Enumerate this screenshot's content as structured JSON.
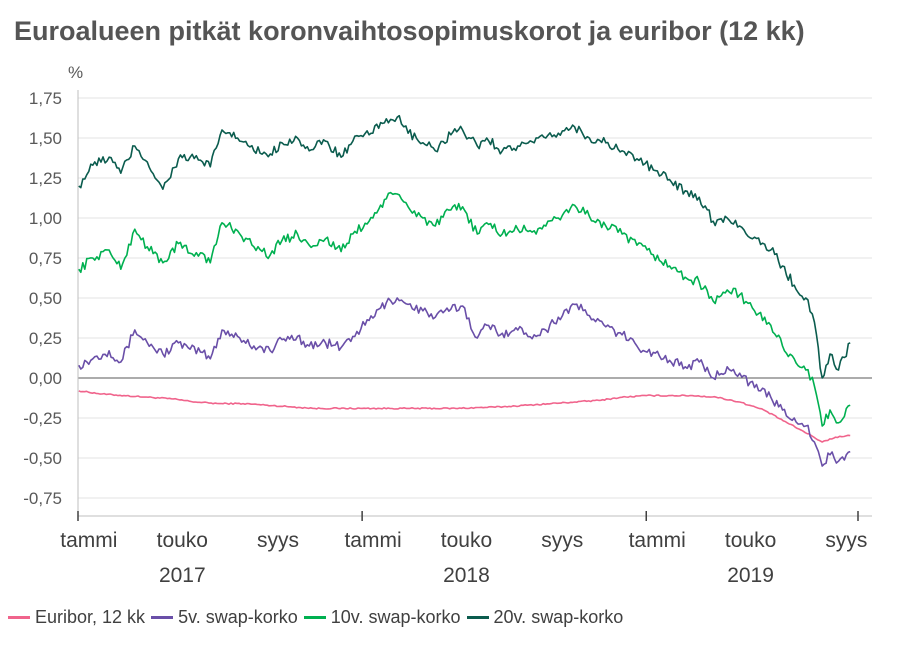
{
  "chart_data": {
    "type": "line",
    "title": "Euroalueen pitkät koronvaihtosopimuskorot ja euribor (12 kk)",
    "ylabel": "%",
    "ylim": [
      -0.75,
      1.75
    ],
    "yticks": [
      "1,75",
      "1,50",
      "1,25",
      "1,00",
      "0,75",
      "0,50",
      "0,25",
      "0,00",
      "-0,25",
      "-0,50",
      "-0,75"
    ],
    "ytick_values": [
      1.75,
      1.5,
      1.25,
      1.0,
      0.75,
      0.5,
      0.25,
      0.0,
      -0.25,
      -0.5,
      -0.75
    ],
    "xlim": [
      "2017-01-01",
      "2019-09-30"
    ],
    "month_labels": [
      {
        "date": "2017-01-15",
        "text": "tammi"
      },
      {
        "date": "2017-05-15",
        "text": "touko"
      },
      {
        "date": "2017-09-15",
        "text": "syys"
      },
      {
        "date": "2018-01-15",
        "text": "tammi"
      },
      {
        "date": "2018-05-15",
        "text": "touko"
      },
      {
        "date": "2018-09-15",
        "text": "syys"
      },
      {
        "date": "2019-01-15",
        "text": "tammi"
      },
      {
        "date": "2019-05-15",
        "text": "touko"
      },
      {
        "date": "2019-09-15",
        "text": "syys"
      }
    ],
    "year_labels": [
      {
        "date": "2017-05-15",
        "text": "2017"
      },
      {
        "date": "2018-05-15",
        "text": "2018"
      },
      {
        "date": "2019-05-15",
        "text": "2019"
      }
    ],
    "year_ticks": [
      "2017-01-01",
      "2018-01-01",
      "2019-01-01",
      "2019-09-30"
    ],
    "grid": "horizontal",
    "legend_position": "bottom",
    "series": [
      {
        "name": "Euribor, 12 kk",
        "color": "#f0648c",
        "points": [
          [
            "2017-01-02",
            -0.08
          ],
          [
            "2017-02-01",
            -0.1
          ],
          [
            "2017-03-01",
            -0.11
          ],
          [
            "2017-04-01",
            -0.12
          ],
          [
            "2017-05-01",
            -0.13
          ],
          [
            "2017-06-01",
            -0.15
          ],
          [
            "2017-07-01",
            -0.16
          ],
          [
            "2017-08-01",
            -0.16
          ],
          [
            "2017-09-01",
            -0.17
          ],
          [
            "2017-10-01",
            -0.18
          ],
          [
            "2017-11-01",
            -0.19
          ],
          [
            "2017-12-01",
            -0.19
          ],
          [
            "2018-01-01",
            -0.19
          ],
          [
            "2018-03-01",
            -0.19
          ],
          [
            "2018-05-01",
            -0.19
          ],
          [
            "2018-07-01",
            -0.18
          ],
          [
            "2018-08-01",
            -0.17
          ],
          [
            "2018-09-01",
            -0.16
          ],
          [
            "2018-10-01",
            -0.15
          ],
          [
            "2018-11-01",
            -0.14
          ],
          [
            "2018-12-01",
            -0.12
          ],
          [
            "2019-01-01",
            -0.11
          ],
          [
            "2019-02-01",
            -0.11
          ],
          [
            "2019-03-01",
            -0.11
          ],
          [
            "2019-04-01",
            -0.12
          ],
          [
            "2019-05-01",
            -0.15
          ],
          [
            "2019-06-01",
            -0.2
          ],
          [
            "2019-07-01",
            -0.28
          ],
          [
            "2019-08-01",
            -0.36
          ],
          [
            "2019-08-15",
            -0.4
          ],
          [
            "2019-09-01",
            -0.37
          ],
          [
            "2019-09-20",
            -0.36
          ]
        ]
      },
      {
        "name": "5v. swap-korko",
        "color": "#6a4fa8",
        "points": [
          [
            "2017-01-02",
            0.08
          ],
          [
            "2017-01-20",
            0.12
          ],
          [
            "2017-02-10",
            0.17
          ],
          [
            "2017-02-25",
            0.1
          ],
          [
            "2017-03-15",
            0.3
          ],
          [
            "2017-03-31",
            0.22
          ],
          [
            "2017-04-20",
            0.15
          ],
          [
            "2017-05-10",
            0.22
          ],
          [
            "2017-05-25",
            0.18
          ],
          [
            "2017-06-10",
            0.16
          ],
          [
            "2017-06-20",
            0.12
          ],
          [
            "2017-07-05",
            0.3
          ],
          [
            "2017-07-25",
            0.26
          ],
          [
            "2017-08-15",
            0.2
          ],
          [
            "2017-09-05",
            0.17
          ],
          [
            "2017-09-20",
            0.24
          ],
          [
            "2017-10-10",
            0.26
          ],
          [
            "2017-10-25",
            0.2
          ],
          [
            "2017-11-15",
            0.22
          ],
          [
            "2017-12-05",
            0.19
          ],
          [
            "2017-12-20",
            0.26
          ],
          [
            "2018-01-10",
            0.36
          ],
          [
            "2018-02-01",
            0.47
          ],
          [
            "2018-02-15",
            0.5
          ],
          [
            "2018-03-01",
            0.46
          ],
          [
            "2018-03-20",
            0.42
          ],
          [
            "2018-04-05",
            0.38
          ],
          [
            "2018-04-25",
            0.43
          ],
          [
            "2018-05-10",
            0.45
          ],
          [
            "2018-05-29",
            0.25
          ],
          [
            "2018-06-10",
            0.33
          ],
          [
            "2018-06-30",
            0.28
          ],
          [
            "2018-07-20",
            0.3
          ],
          [
            "2018-08-10",
            0.27
          ],
          [
            "2018-08-25",
            0.3
          ],
          [
            "2018-09-10",
            0.38
          ],
          [
            "2018-10-01",
            0.46
          ],
          [
            "2018-10-20",
            0.39
          ],
          [
            "2018-11-10",
            0.32
          ],
          [
            "2018-12-01",
            0.27
          ],
          [
            "2018-12-20",
            0.2
          ],
          [
            "2019-01-10",
            0.16
          ],
          [
            "2019-01-31",
            0.11
          ],
          [
            "2019-02-20",
            0.07
          ],
          [
            "2019-03-10",
            0.1
          ],
          [
            "2019-03-28",
            0.0
          ],
          [
            "2019-04-15",
            0.07
          ],
          [
            "2019-05-01",
            0.03
          ],
          [
            "2019-05-20",
            -0.06
          ],
          [
            "2019-06-10",
            -0.12
          ],
          [
            "2019-06-25",
            -0.2
          ],
          [
            "2019-07-10",
            -0.25
          ],
          [
            "2019-07-25",
            -0.3
          ],
          [
            "2019-08-05",
            -0.4
          ],
          [
            "2019-08-15",
            -0.55
          ],
          [
            "2019-08-25",
            -0.48
          ],
          [
            "2019-09-05",
            -0.52
          ],
          [
            "2019-09-20",
            -0.46
          ]
        ]
      },
      {
        "name": "10v. swap-korko",
        "color": "#00b050",
        "points": [
          [
            "2017-01-02",
            0.68
          ],
          [
            "2017-01-20",
            0.75
          ],
          [
            "2017-02-10",
            0.8
          ],
          [
            "2017-02-25",
            0.68
          ],
          [
            "2017-03-15",
            0.93
          ],
          [
            "2017-03-31",
            0.82
          ],
          [
            "2017-04-20",
            0.72
          ],
          [
            "2017-05-10",
            0.84
          ],
          [
            "2017-05-25",
            0.78
          ],
          [
            "2017-06-10",
            0.78
          ],
          [
            "2017-06-20",
            0.72
          ],
          [
            "2017-07-05",
            0.97
          ],
          [
            "2017-07-25",
            0.92
          ],
          [
            "2017-08-15",
            0.82
          ],
          [
            "2017-09-05",
            0.77
          ],
          [
            "2017-09-20",
            0.86
          ],
          [
            "2017-10-10",
            0.9
          ],
          [
            "2017-10-25",
            0.83
          ],
          [
            "2017-11-15",
            0.87
          ],
          [
            "2017-12-05",
            0.79
          ],
          [
            "2017-12-20",
            0.9
          ],
          [
            "2018-01-10",
            0.98
          ],
          [
            "2018-02-01",
            1.12
          ],
          [
            "2018-02-15",
            1.15
          ],
          [
            "2018-03-01",
            1.07
          ],
          [
            "2018-03-20",
            1.0
          ],
          [
            "2018-04-05",
            0.95
          ],
          [
            "2018-04-25",
            1.05
          ],
          [
            "2018-05-10",
            1.07
          ],
          [
            "2018-05-29",
            0.9
          ],
          [
            "2018-06-10",
            0.97
          ],
          [
            "2018-06-30",
            0.9
          ],
          [
            "2018-07-20",
            0.93
          ],
          [
            "2018-08-10",
            0.92
          ],
          [
            "2018-08-25",
            0.95
          ],
          [
            "2018-09-10",
            1.0
          ],
          [
            "2018-10-01",
            1.08
          ],
          [
            "2018-10-20",
            1.01
          ],
          [
            "2018-11-10",
            0.95
          ],
          [
            "2018-12-01",
            0.9
          ],
          [
            "2018-12-20",
            0.83
          ],
          [
            "2019-01-10",
            0.77
          ],
          [
            "2019-01-31",
            0.7
          ],
          [
            "2019-02-20",
            0.63
          ],
          [
            "2019-03-10",
            0.6
          ],
          [
            "2019-03-28",
            0.48
          ],
          [
            "2019-04-15",
            0.55
          ],
          [
            "2019-05-01",
            0.52
          ],
          [
            "2019-05-20",
            0.42
          ],
          [
            "2019-06-10",
            0.33
          ],
          [
            "2019-06-25",
            0.2
          ],
          [
            "2019-07-10",
            0.12
          ],
          [
            "2019-07-25",
            0.05
          ],
          [
            "2019-08-05",
            -0.05
          ],
          [
            "2019-08-15",
            -0.3
          ],
          [
            "2019-08-25",
            -0.2
          ],
          [
            "2019-09-05",
            -0.28
          ],
          [
            "2019-09-20",
            -0.17
          ]
        ]
      },
      {
        "name": "20v. swap-korko",
        "color": "#0b5c4e",
        "points": [
          [
            "2017-01-02",
            1.2
          ],
          [
            "2017-01-20",
            1.33
          ],
          [
            "2017-02-10",
            1.38
          ],
          [
            "2017-02-25",
            1.28
          ],
          [
            "2017-03-15",
            1.45
          ],
          [
            "2017-03-31",
            1.35
          ],
          [
            "2017-04-20",
            1.18
          ],
          [
            "2017-05-10",
            1.37
          ],
          [
            "2017-05-25",
            1.38
          ],
          [
            "2017-06-10",
            1.35
          ],
          [
            "2017-06-20",
            1.32
          ],
          [
            "2017-07-05",
            1.55
          ],
          [
            "2017-07-25",
            1.5
          ],
          [
            "2017-08-15",
            1.42
          ],
          [
            "2017-09-05",
            1.4
          ],
          [
            "2017-09-20",
            1.47
          ],
          [
            "2017-10-10",
            1.5
          ],
          [
            "2017-10-25",
            1.42
          ],
          [
            "2017-11-15",
            1.48
          ],
          [
            "2017-12-05",
            1.38
          ],
          [
            "2017-12-20",
            1.48
          ],
          [
            "2018-01-10",
            1.52
          ],
          [
            "2018-02-01",
            1.62
          ],
          [
            "2018-02-15",
            1.63
          ],
          [
            "2018-03-01",
            1.53
          ],
          [
            "2018-03-20",
            1.47
          ],
          [
            "2018-04-05",
            1.42
          ],
          [
            "2018-04-25",
            1.52
          ],
          [
            "2018-05-10",
            1.55
          ],
          [
            "2018-05-29",
            1.45
          ],
          [
            "2018-06-10",
            1.5
          ],
          [
            "2018-06-30",
            1.42
          ],
          [
            "2018-07-20",
            1.45
          ],
          [
            "2018-08-10",
            1.47
          ],
          [
            "2018-08-25",
            1.5
          ],
          [
            "2018-09-10",
            1.53
          ],
          [
            "2018-10-01",
            1.57
          ],
          [
            "2018-10-20",
            1.5
          ],
          [
            "2018-11-10",
            1.47
          ],
          [
            "2018-12-01",
            1.42
          ],
          [
            "2018-12-20",
            1.37
          ],
          [
            "2019-01-10",
            1.3
          ],
          [
            "2019-01-31",
            1.24
          ],
          [
            "2019-02-20",
            1.17
          ],
          [
            "2019-03-10",
            1.13
          ],
          [
            "2019-03-28",
            0.98
          ],
          [
            "2019-04-15",
            1.0
          ],
          [
            "2019-05-01",
            0.95
          ],
          [
            "2019-05-20",
            0.88
          ],
          [
            "2019-06-10",
            0.8
          ],
          [
            "2019-06-25",
            0.7
          ],
          [
            "2019-07-10",
            0.58
          ],
          [
            "2019-07-25",
            0.5
          ],
          [
            "2019-08-05",
            0.35
          ],
          [
            "2019-08-15",
            0.0
          ],
          [
            "2019-08-25",
            0.15
          ],
          [
            "2019-09-05",
            0.05
          ],
          [
            "2019-09-20",
            0.22
          ]
        ]
      }
    ]
  }
}
